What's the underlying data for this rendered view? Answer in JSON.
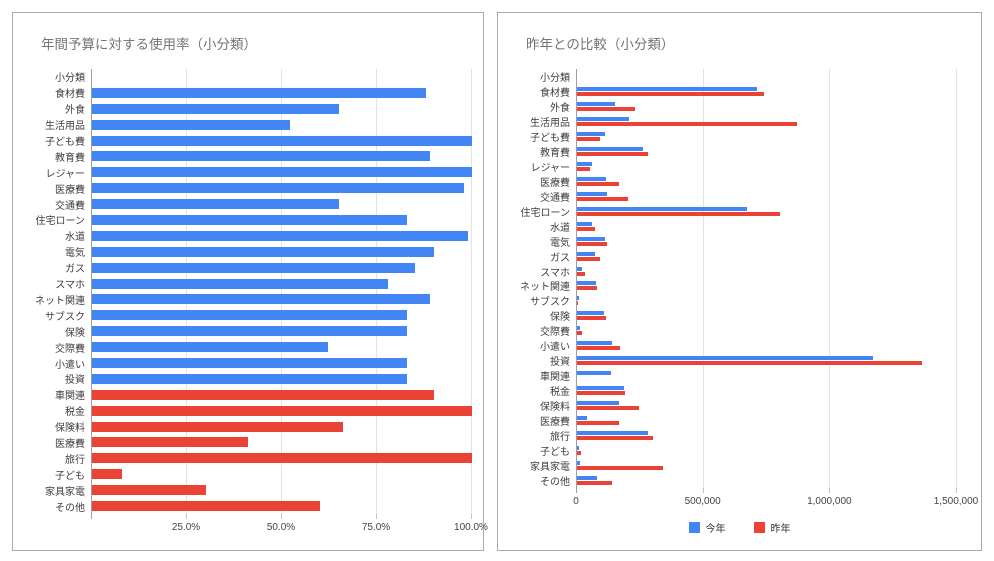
{
  "chart_data": [
    {
      "type": "bar",
      "orientation": "horizontal",
      "title": "年間予算に対する使用率（小分類）",
      "categories": [
        "小分類",
        "食材費",
        "外食",
        "生活用品",
        "子ども費",
        "教育費",
        "レジャー",
        "医療費",
        "交通費",
        "住宅ローン",
        "水道",
        "電気",
        "ガス",
        "スマホ",
        "ネット関連",
        "サブスク",
        "保険",
        "交際費",
        "小遣い",
        "投資",
        "車関連",
        "税金",
        "保険料",
        "医療費",
        "旅行",
        "子ども",
        "家具家電",
        "その他"
      ],
      "values": [
        null,
        88,
        65,
        52,
        100,
        89,
        100,
        98,
        65,
        83,
        99,
        90,
        85,
        78,
        89,
        83,
        83,
        62,
        83,
        83,
        90,
        100,
        66,
        41,
        100,
        8,
        30,
        60
      ],
      "value_unit": "percent",
      "bar_colors": [
        null,
        "#4285f4",
        "#4285f4",
        "#4285f4",
        "#4285f4",
        "#4285f4",
        "#4285f4",
        "#4285f4",
        "#4285f4",
        "#4285f4",
        "#4285f4",
        "#4285f4",
        "#4285f4",
        "#4285f4",
        "#4285f4",
        "#4285f4",
        "#4285f4",
        "#4285f4",
        "#4285f4",
        "#4285f4",
        "#ea4335",
        "#ea4335",
        "#ea4335",
        "#ea4335",
        "#ea4335",
        "#ea4335",
        "#ea4335",
        "#ea4335"
      ],
      "xlim": [
        0,
        100
      ],
      "xticks": [
        {
          "value": 25,
          "label": "25.0%"
        },
        {
          "value": 50,
          "label": "50.0%"
        },
        {
          "value": 75,
          "label": "75.0%"
        },
        {
          "value": 100,
          "label": "100.0%"
        }
      ],
      "grid": true,
      "legend": null
    },
    {
      "type": "bar",
      "orientation": "horizontal",
      "title": "昨年との比較（小分類）",
      "categories": [
        "小分類",
        "食材費",
        "外食",
        "生活用品",
        "子ども費",
        "教育費",
        "レジャー",
        "医療費",
        "交通費",
        "住宅ローン",
        "水道",
        "電気",
        "ガス",
        "スマホ",
        "ネット関連",
        "サブスク",
        "保険",
        "交際費",
        "小遣い",
        "投資",
        "車関連",
        "税金",
        "保険料",
        "医療費",
        "旅行",
        "子ども",
        "家具家電",
        "その他"
      ],
      "series": [
        {
          "name": "今年",
          "color": "#4285f4",
          "values": [
            null,
            710000,
            150000,
            205000,
            110000,
            260000,
            60000,
            115000,
            120000,
            670000,
            60000,
            110000,
            70000,
            20000,
            75000,
            8000,
            105000,
            12000,
            140000,
            1170000,
            135000,
            185000,
            165000,
            40000,
            280000,
            8000,
            12000,
            80000
          ]
        },
        {
          "name": "昨年",
          "color": "#ea4335",
          "values": [
            null,
            740000,
            230000,
            870000,
            90000,
            280000,
            50000,
            165000,
            200000,
            800000,
            70000,
            120000,
            90000,
            30000,
            80000,
            5000,
            115000,
            20000,
            170000,
            1360000,
            0,
            190000,
            245000,
            165000,
            300000,
            15000,
            340000,
            140000
          ]
        }
      ],
      "xlim": [
        0,
        1500000
      ],
      "xticks": [
        {
          "value": 0,
          "label": "0"
        },
        {
          "value": 500000,
          "label": "500,000"
        },
        {
          "value": 1000000,
          "label": "1,000,000"
        },
        {
          "value": 1500000,
          "label": "1,500,000"
        }
      ],
      "grid": true,
      "legend": {
        "position": "bottom"
      }
    }
  ]
}
